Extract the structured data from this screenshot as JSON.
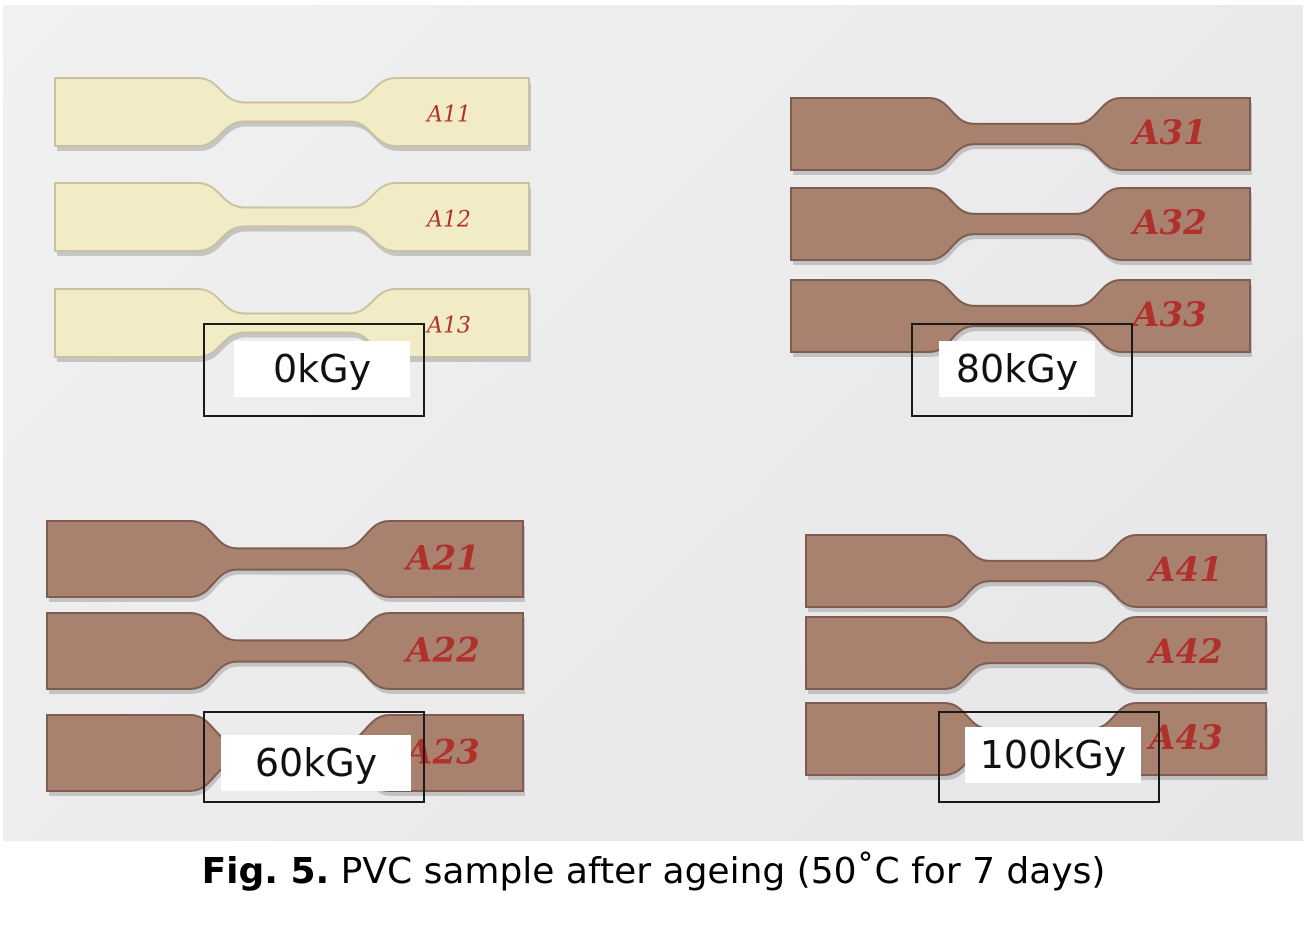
{
  "caption": {
    "figure_number": "Fig. 5.",
    "text": "PVC sample after ageing (50˚C for 7 days)"
  },
  "colors": {
    "unirradiated_sample": "#f2ecc6",
    "irradiated_sample": "#a9826f",
    "marker_ink": "#b0302c"
  },
  "groups": [
    {
      "dose_label": "0kGy",
      "samples": [
        "A11",
        "A12",
        "A13"
      ]
    },
    {
      "dose_label": "80kGy",
      "samples": [
        "A31",
        "A32",
        "A33"
      ]
    },
    {
      "dose_label": "60kGy",
      "samples": [
        "A21",
        "A22",
        "A23"
      ]
    },
    {
      "dose_label": "100kGy",
      "samples": [
        "A41",
        "A42",
        "A43"
      ]
    }
  ]
}
